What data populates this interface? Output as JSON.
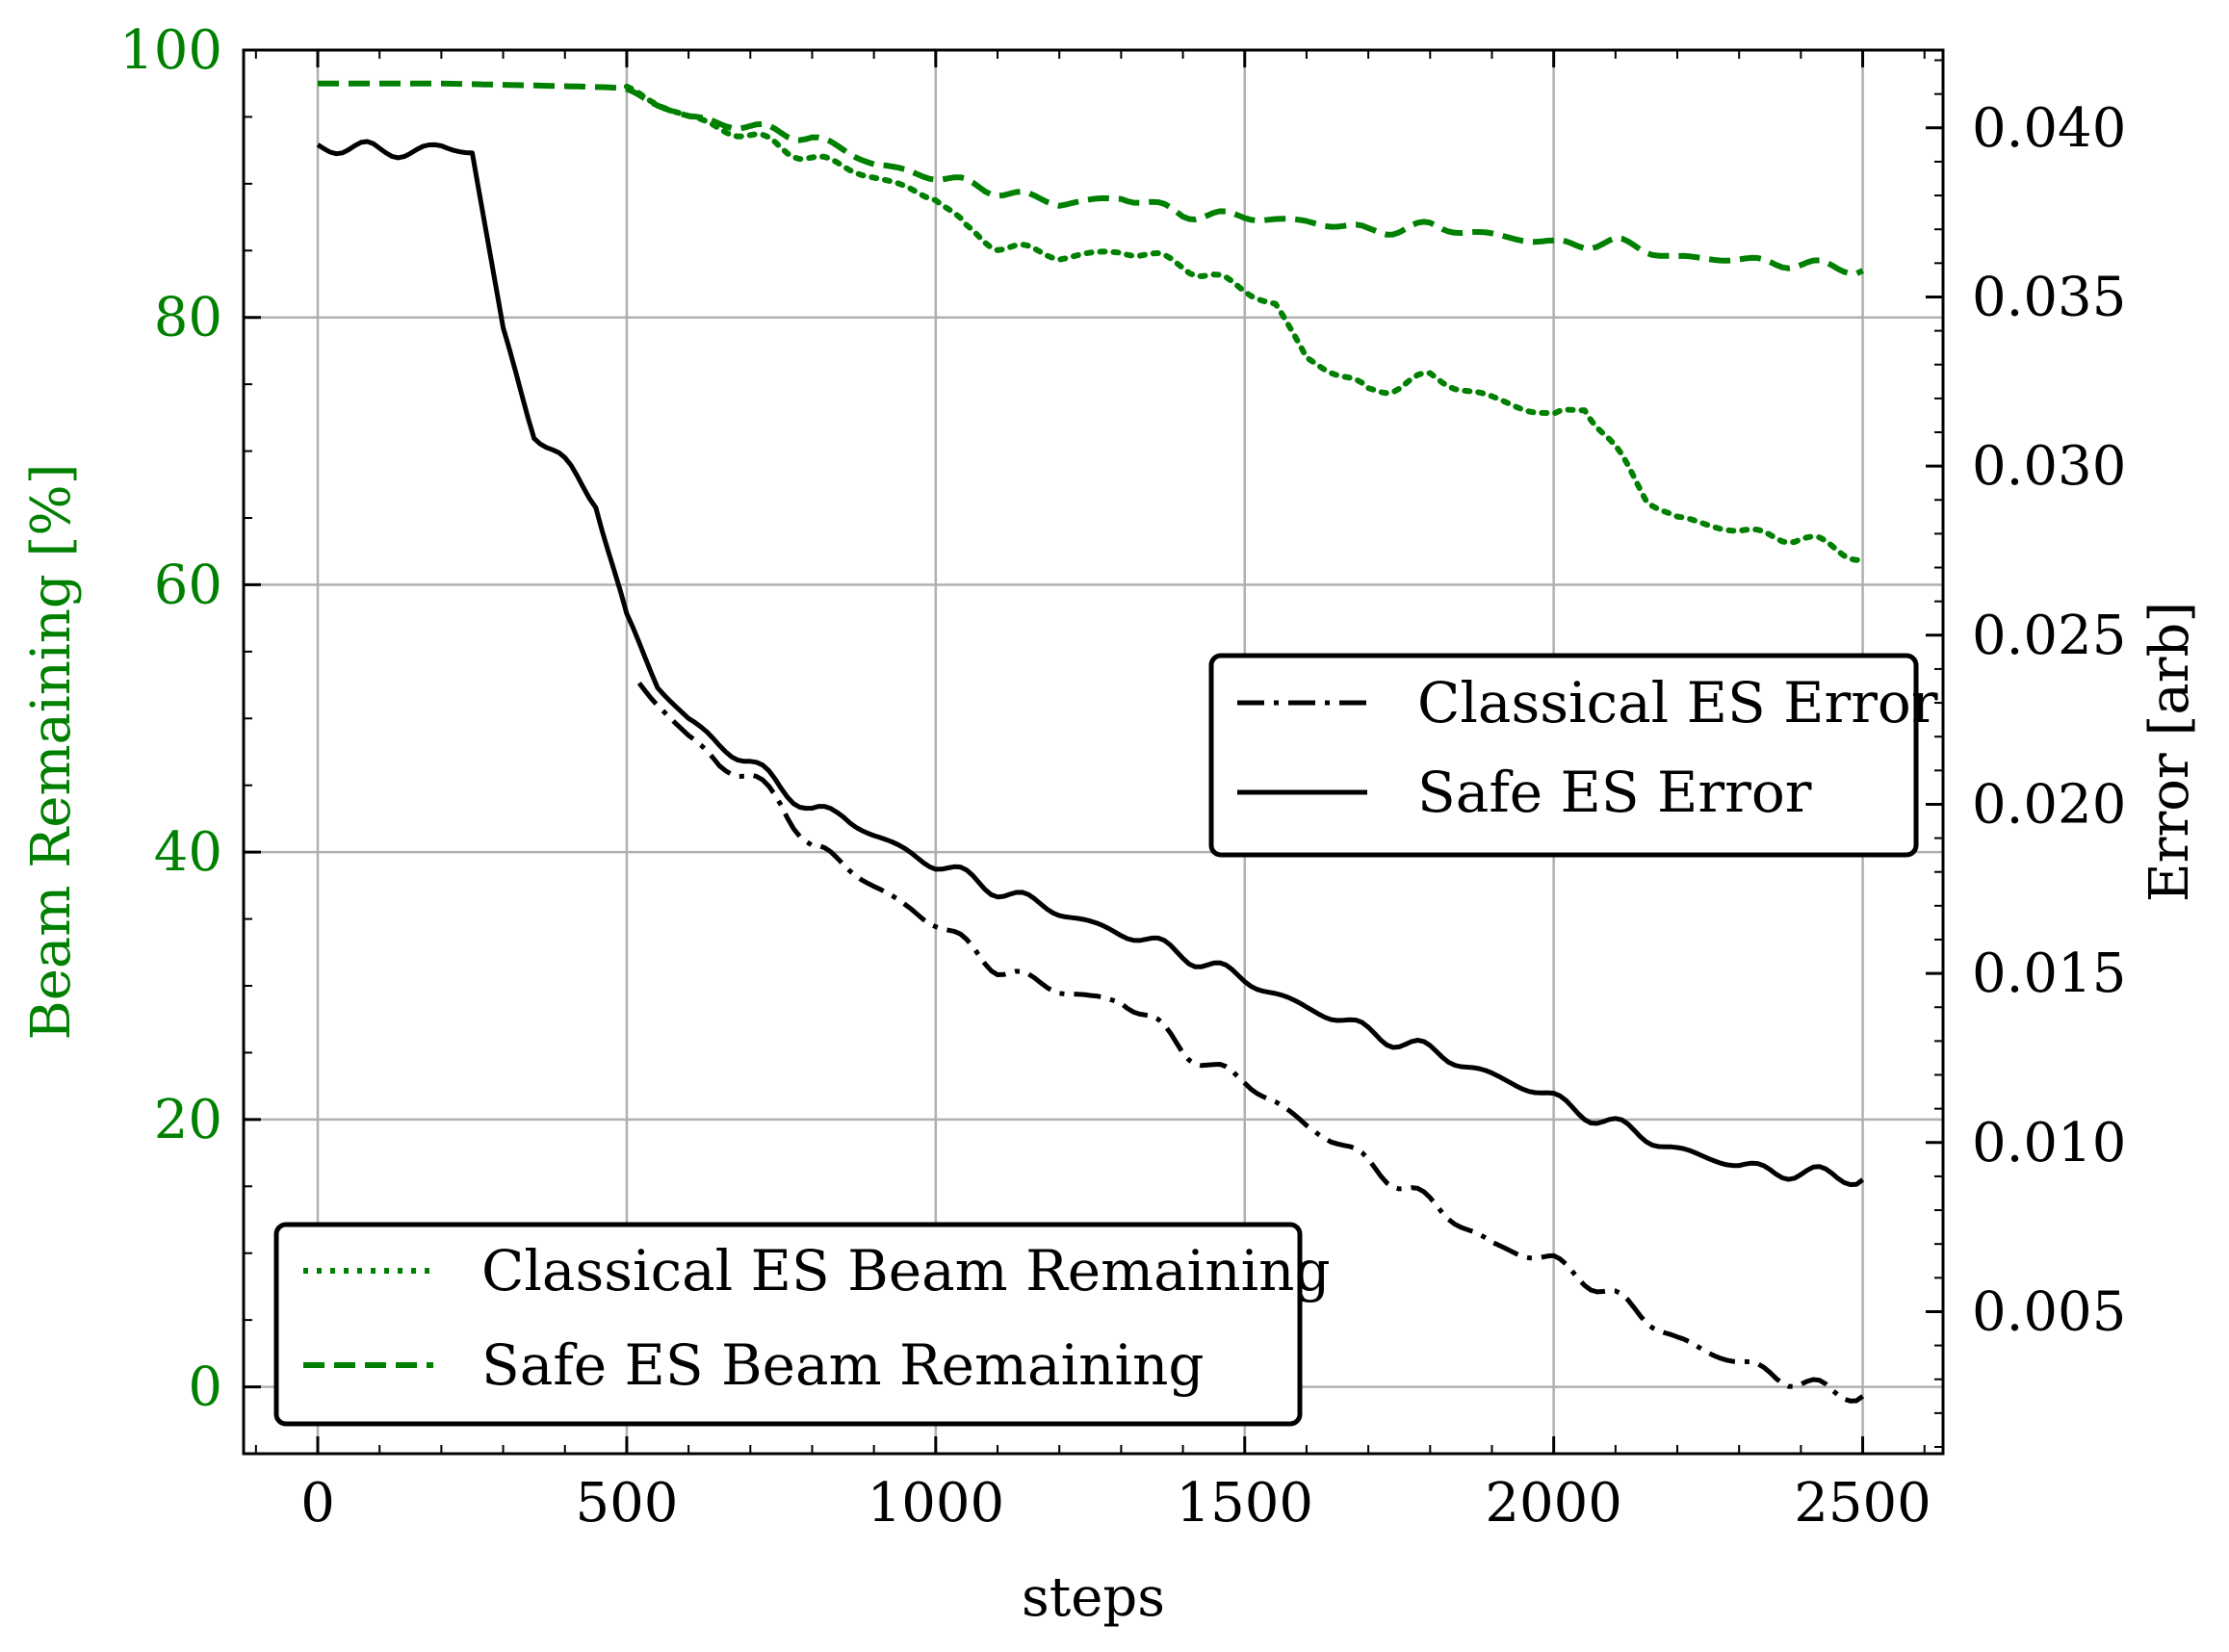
{
  "chart_data": {
    "type": "line",
    "title": "",
    "xlabel": "steps",
    "ylabel_left": "Beam Remaining [%]",
    "ylabel_right": "Error [arb]",
    "xlim": [
      -120,
      2630
    ],
    "ylim_left": [
      -5,
      100
    ],
    "ylim_right": [
      0.0008,
      0.0423
    ],
    "grid": true,
    "x_ticks": [
      0,
      500,
      1000,
      1500,
      2000,
      2500
    ],
    "x_tick_labels": [
      "0",
      "500",
      "1000",
      "1500",
      "2000",
      "2500"
    ],
    "y_ticks_left": [
      0,
      20,
      40,
      60,
      80,
      100
    ],
    "y_tick_labels_left": [
      "0",
      "20",
      "40",
      "60",
      "80",
      "100"
    ],
    "y_ticks_right": [
      0.005,
      0.01,
      0.015,
      0.02,
      0.025,
      0.03,
      0.035,
      0.04
    ],
    "y_tick_labels_right": [
      "0.005",
      "0.010",
      "0.015",
      "0.020",
      "0.025",
      "0.030",
      "0.035",
      "0.040"
    ],
    "colors": {
      "green": "#008000",
      "black": "#000000",
      "grid": "#b0b0b0"
    },
    "legends": [
      {
        "placement": "center-right",
        "entries": [
          {
            "label": "Classical ES Error",
            "series": "classical_error"
          },
          {
            "label": "Safe ES Error",
            "series": "safe_error"
          }
        ]
      },
      {
        "placement": "bottom-left",
        "entries": [
          {
            "label": "Classical ES Beam Remaining",
            "series": "classical_beam"
          },
          {
            "label": "Safe ES Beam Remaining",
            "series": "safe_beam"
          }
        ]
      }
    ],
    "series": [
      {
        "id": "safe_beam",
        "name": "Safe ES Beam Remaining",
        "axis": "left",
        "color": "#008000",
        "style": "dashed",
        "x": [
          0,
          100,
          200,
          300,
          400,
          480,
          520,
          600,
          700,
          800,
          900,
          1000,
          1100,
          1200,
          1300,
          1400,
          1500,
          1600,
          1700,
          1800,
          1900,
          2000,
          2100,
          2200,
          2300,
          2400,
          2500
        ],
        "y": [
          97.5,
          97.5,
          97.5,
          97.4,
          97.3,
          97.2,
          96.5,
          95.0,
          94.2,
          93.5,
          91.5,
          90.5,
          89.5,
          88.5,
          89.0,
          87.8,
          87.5,
          87.2,
          86.5,
          86.8,
          86.2,
          85.5,
          85.6,
          84.5,
          84.3,
          84.0,
          83.5
        ]
      },
      {
        "id": "classical_beam",
        "name": "Classical ES Beam Remaining",
        "axis": "left",
        "color": "#008000",
        "style": "dotted",
        "x": [
          500,
          600,
          700,
          800,
          900,
          1000,
          1050,
          1100,
          1200,
          1300,
          1400,
          1450,
          1500,
          1550,
          1600,
          1700,
          1800,
          1900,
          2000,
          2050,
          2100,
          2150,
          2200,
          2300,
          2400,
          2500
        ],
        "y": [
          97.0,
          95.0,
          93.5,
          92.0,
          90.5,
          89.0,
          86.5,
          85.5,
          84.5,
          85.0,
          84.0,
          83.0,
          82.0,
          81.0,
          77.0,
          74.5,
          75.5,
          74.0,
          72.5,
          73.5,
          70.0,
          66.5,
          65.0,
          64.0,
          63.5,
          62.0
        ]
      },
      {
        "id": "safe_error",
        "name": "Safe ES Error",
        "axis": "right",
        "color": "#000000",
        "style": "solid",
        "x": [
          0,
          100,
          200,
          250,
          300,
          350,
          400,
          450,
          500,
          550,
          600,
          650,
          700,
          750,
          800,
          850,
          900,
          1000,
          1100,
          1200,
          1300,
          1400,
          1500,
          1600,
          1700,
          1800,
          1900,
          2000,
          2100,
          2200,
          2300,
          2400,
          2500
        ],
        "y": [
          0.0395,
          0.0393,
          0.0394,
          0.0393,
          0.034,
          0.031,
          0.03,
          0.029,
          0.0255,
          0.0235,
          0.0225,
          0.0218,
          0.0212,
          0.0205,
          0.0199,
          0.0196,
          0.0191,
          0.0182,
          0.0175,
          0.0168,
          0.0162,
          0.0156,
          0.0148,
          0.014,
          0.0133,
          0.0127,
          0.012,
          0.0113,
          0.0105,
          0.0098,
          0.0093,
          0.0091,
          0.0089
        ]
      },
      {
        "id": "classical_error",
        "name": "Classical ES Error",
        "axis": "right",
        "color": "#000000",
        "style": "dashdot",
        "x": [
          520,
          560,
          600,
          650,
          700,
          750,
          800,
          850,
          900,
          950,
          1000,
          1050,
          1100,
          1150,
          1200,
          1250,
          1300,
          1350,
          1400,
          1450,
          1500,
          1550,
          1600,
          1650,
          1700,
          1750,
          1800,
          1850,
          1900,
          1950,
          2000,
          2050,
          2100,
          2150,
          2200,
          2250,
          2300,
          2350,
          2400,
          2450,
          2500
        ],
        "y": [
          0.0235,
          0.0228,
          0.022,
          0.0212,
          0.0208,
          0.02,
          0.0188,
          0.0182,
          0.0176,
          0.017,
          0.0165,
          0.0158,
          0.0152,
          0.0148,
          0.0145,
          0.0143,
          0.0142,
          0.0136,
          0.0128,
          0.0122,
          0.0118,
          0.0112,
          0.0105,
          0.01,
          0.0094,
          0.0088,
          0.0082,
          0.0076,
          0.007,
          0.0067,
          0.0065,
          0.006,
          0.0054,
          0.0048,
          0.0042,
          0.0038,
          0.0035,
          0.0032,
          0.0029,
          0.0026,
          0.0025
        ]
      }
    ]
  }
}
